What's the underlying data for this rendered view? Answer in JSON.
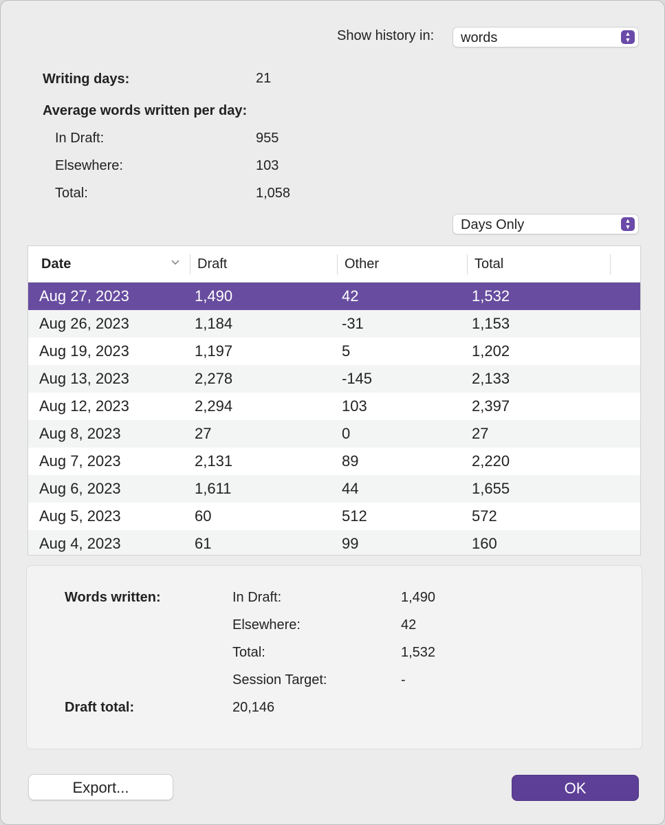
{
  "header": {
    "show_history_label": "Show history in:",
    "show_history_value": "words"
  },
  "stats": {
    "writing_days_label": "Writing days:",
    "writing_days_value": "21",
    "average_heading": "Average words written per day:",
    "in_draft_label": "In Draft:",
    "in_draft_value": "955",
    "elsewhere_label": "Elsewhere:",
    "elsewhere_value": "103",
    "total_label": "Total:",
    "total_value": "1,058"
  },
  "filter": {
    "value": "Days Only"
  },
  "table": {
    "columns": [
      "Date",
      "Draft",
      "Other",
      "Total"
    ],
    "sort_icon": "chevron-down-icon",
    "rows": [
      [
        "Aug 27, 2023",
        "1,490",
        "42",
        "1,532"
      ],
      [
        "Aug 26, 2023",
        "1,184",
        "-31",
        "1,153"
      ],
      [
        "Aug 19, 2023",
        "1,197",
        "5",
        "1,202"
      ],
      [
        "Aug 13, 2023",
        "2,278",
        "-145",
        "2,133"
      ],
      [
        "Aug 12, 2023",
        "2,294",
        "103",
        "2,397"
      ],
      [
        "Aug 8, 2023",
        "27",
        "0",
        "27"
      ],
      [
        "Aug 7, 2023",
        "2,131",
        "89",
        "2,220"
      ],
      [
        "Aug 6, 2023",
        "1,611",
        "44",
        "1,655"
      ],
      [
        "Aug 5, 2023",
        "60",
        "512",
        "572"
      ],
      [
        "Aug 4, 2023",
        "61",
        "99",
        "160"
      ]
    ],
    "selected_row": 0
  },
  "details": {
    "words_written_label": "Words written:",
    "in_draft_label": "In Draft:",
    "in_draft_value": "1,490",
    "elsewhere_label": "Elsewhere:",
    "elsewhere_value": "42",
    "total_label": "Total:",
    "total_value": "1,532",
    "session_target_label": "Session Target:",
    "session_target_value": "-",
    "draft_total_label": "Draft total:",
    "draft_total_value": "20,146"
  },
  "buttons": {
    "export": "Export...",
    "ok": "OK"
  },
  "colors": {
    "accent": "#674c9f",
    "ok_button": "#5d3f97",
    "window_bg": "#ececec"
  }
}
